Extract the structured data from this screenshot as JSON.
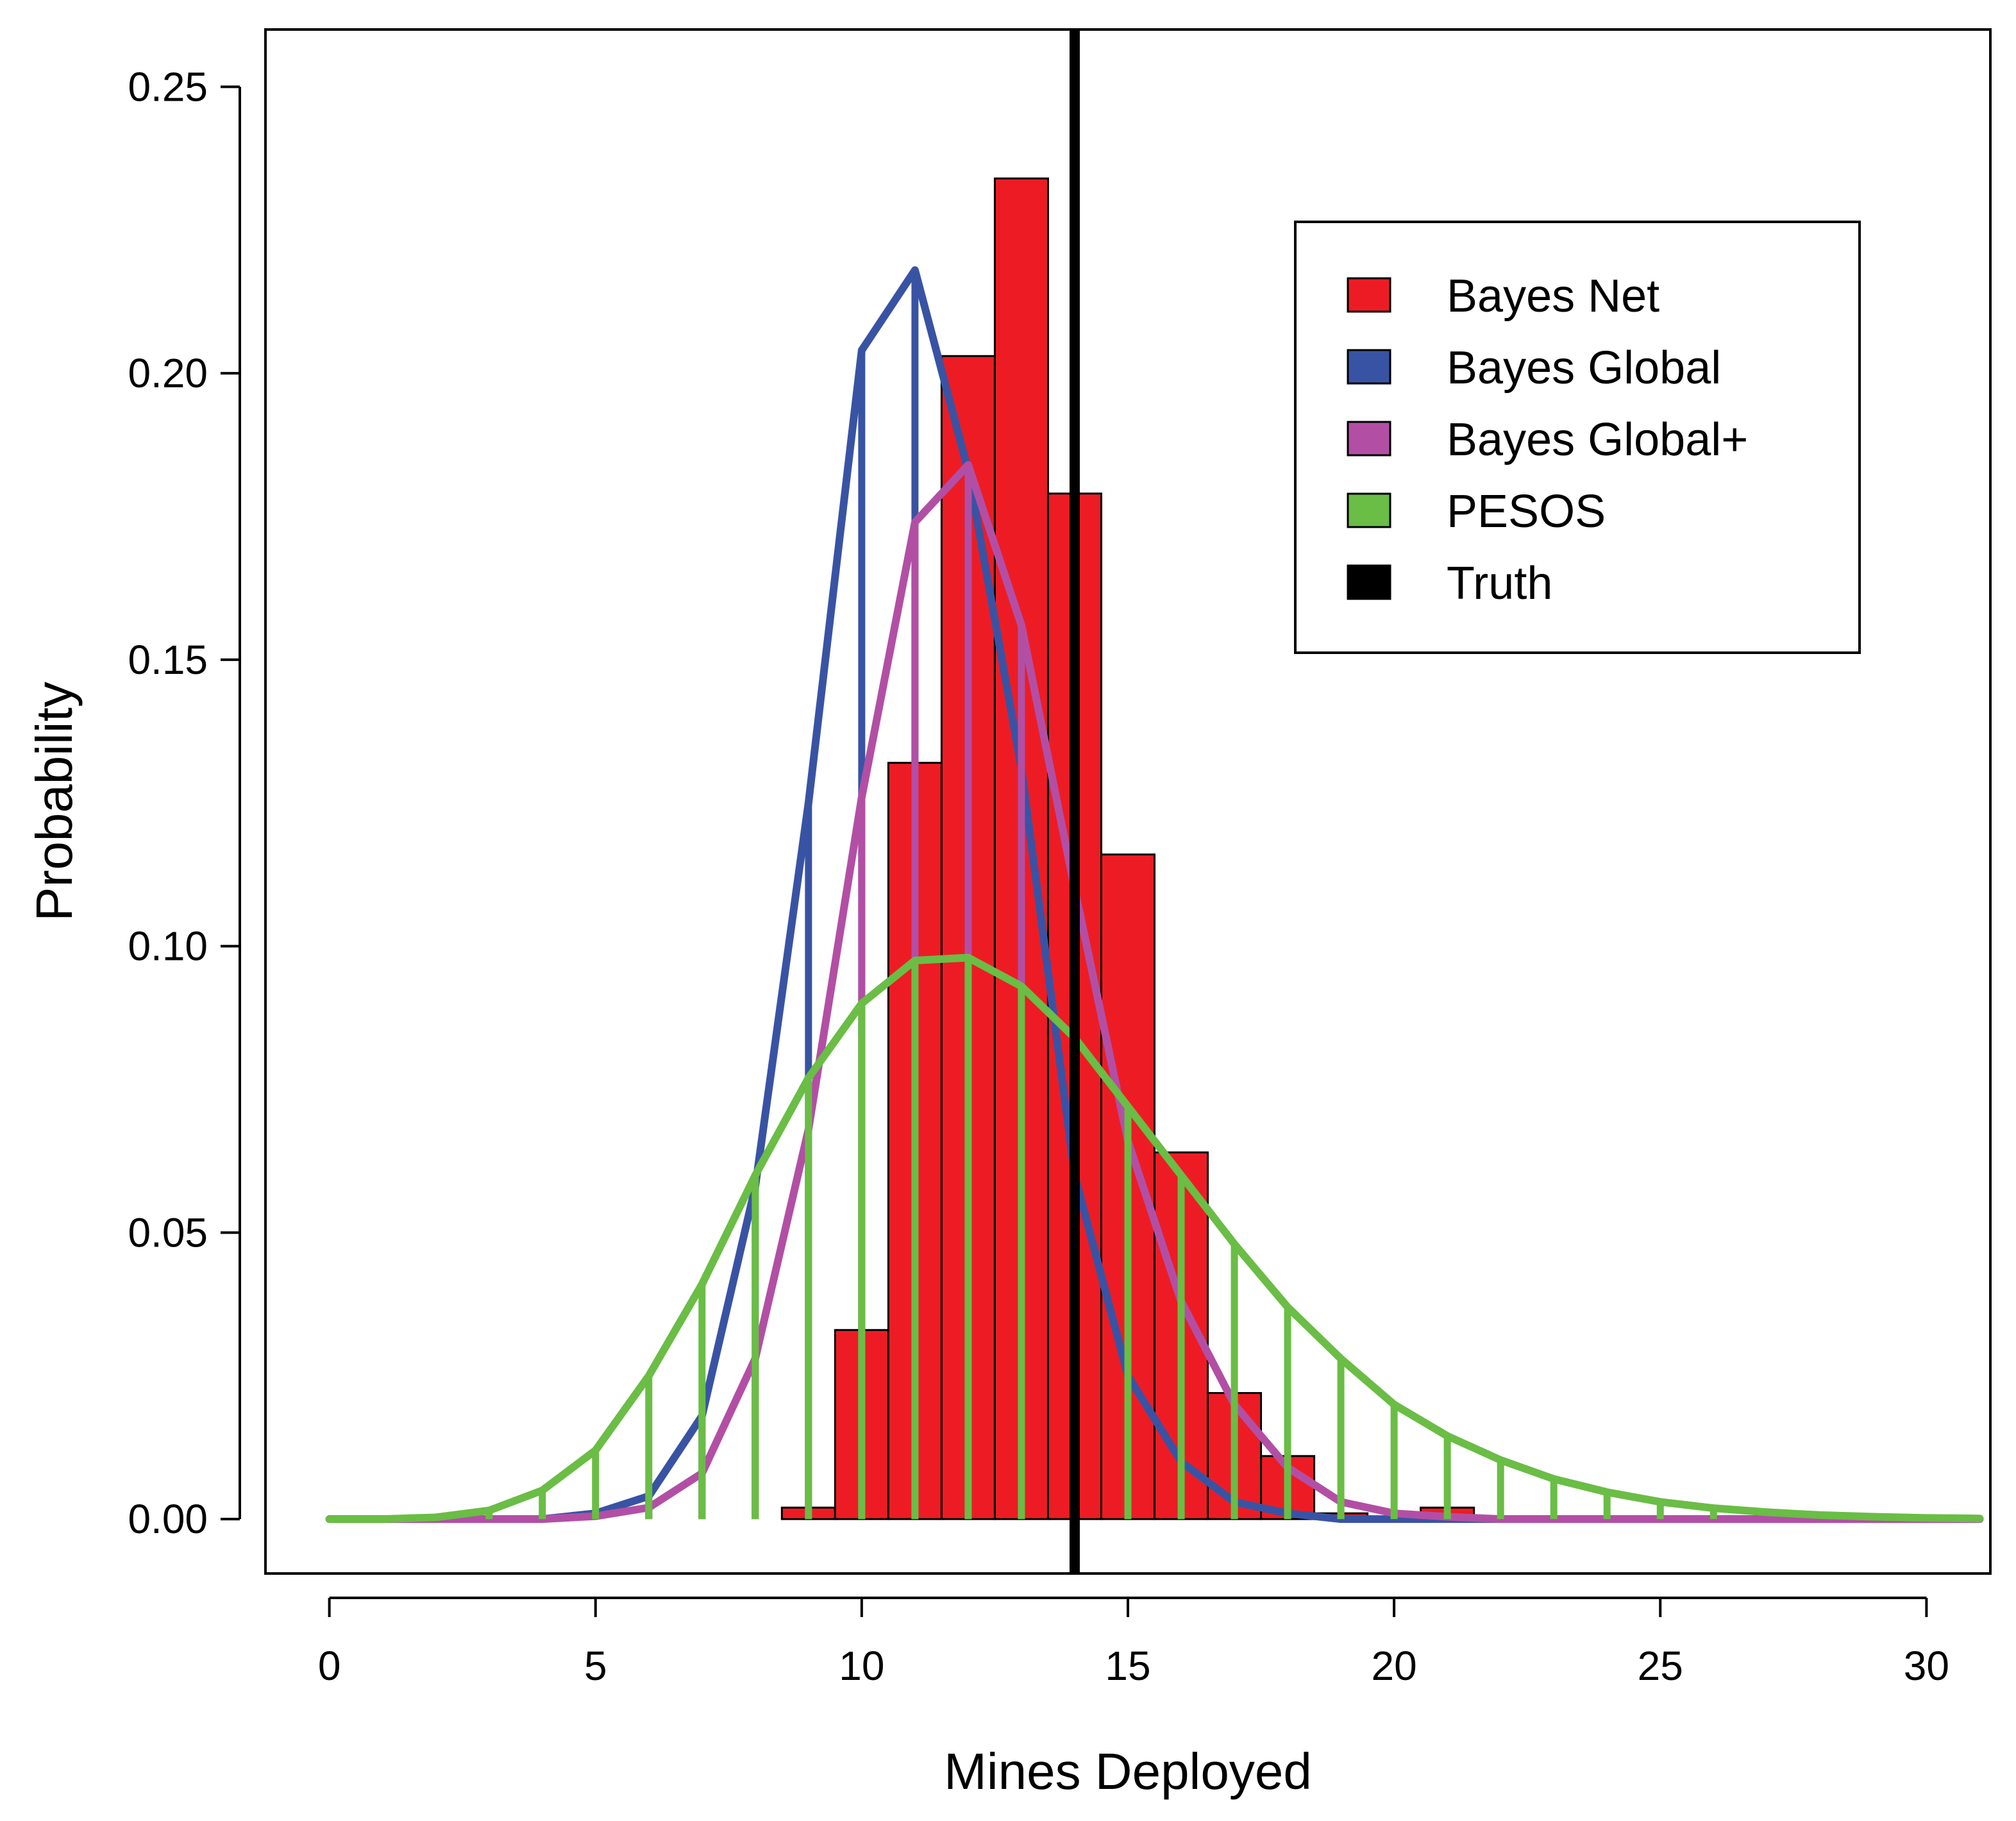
{
  "chart_data": {
    "type": "bar",
    "title": "",
    "xlabel": "Mines Deployed",
    "ylabel": "Probability",
    "xlim": [
      -1.2,
      31.2
    ],
    "ylim": [
      -0.0095,
      0.26
    ],
    "grid": false,
    "legend_position": "top-right",
    "xticks": [
      0,
      5,
      10,
      15,
      20,
      25,
      30
    ],
    "xtick_labels": [
      "0",
      "5",
      "10",
      "15",
      "20",
      "25",
      "30"
    ],
    "yticks": [
      0.0,
      0.05,
      0.1,
      0.15,
      0.2,
      0.25
    ],
    "ytick_labels": [
      "0.00",
      "0.05",
      "0.10",
      "0.15",
      "0.20",
      "0.25"
    ],
    "truth": {
      "name": "Truth",
      "value": 14,
      "color": "#000000"
    },
    "histogram": {
      "name": "Bayes Net",
      "color": "#ed1c24",
      "bin_edges": [
        8.5,
        9.5,
        10.5,
        11.5,
        12.5,
        13.5,
        14.5,
        15.5,
        16.5,
        17.5,
        18.5,
        19.5,
        20.5,
        21.5
      ],
      "values": [
        0.002,
        0.033,
        0.132,
        0.203,
        0.234,
        0.179,
        0.116,
        0.064,
        0.022,
        0.011,
        0.001,
        0.0,
        0.002
      ]
    },
    "series": [
      {
        "name": "Bayes Global",
        "color": "#3953a4",
        "x": [
          0,
          1,
          2,
          3,
          4,
          5,
          6,
          7,
          8,
          9,
          10,
          11,
          12,
          13,
          14,
          15,
          16,
          17,
          18,
          19,
          20,
          21,
          22,
          23,
          24,
          25,
          26,
          27,
          28,
          29,
          30,
          31
        ],
        "values": [
          0,
          0,
          0,
          0,
          0,
          0.001,
          0.004,
          0.018,
          0.058,
          0.125,
          0.204,
          0.218,
          0.183,
          0.131,
          0.06,
          0.025,
          0.01,
          0.003,
          0.001,
          0,
          0,
          0,
          0,
          0,
          0,
          0,
          0,
          0,
          0,
          0,
          0,
          0
        ]
      },
      {
        "name": "Bayes Global+",
        "color": "#b24fa5",
        "x": [
          0,
          1,
          2,
          3,
          4,
          5,
          6,
          7,
          8,
          9,
          10,
          11,
          12,
          13,
          14,
          15,
          16,
          17,
          18,
          19,
          20,
          21,
          22,
          23,
          24,
          25,
          26,
          27,
          28,
          29,
          30,
          31
        ],
        "values": [
          0,
          0,
          0,
          0,
          0,
          0.0005,
          0.002,
          0.008,
          0.028,
          0.068,
          0.126,
          0.174,
          0.184,
          0.156,
          0.11,
          0.066,
          0.038,
          0.02,
          0.009,
          0.003,
          0.001,
          0.0004,
          0,
          0,
          0,
          0,
          0,
          0,
          0,
          0,
          0,
          0
        ]
      },
      {
        "name": "PESOS",
        "color": "#6abd45",
        "x": [
          0,
          1,
          2,
          3,
          4,
          5,
          6,
          7,
          8,
          9,
          10,
          11,
          12,
          13,
          14,
          15,
          16,
          17,
          18,
          19,
          20,
          21,
          22,
          23,
          24,
          25,
          26,
          27,
          28,
          29,
          30,
          31
        ],
        "values": [
          0.0,
          0.0,
          0.0003,
          0.0015,
          0.005,
          0.012,
          0.025,
          0.041,
          0.06,
          0.077,
          0.09,
          0.0975,
          0.098,
          0.093,
          0.084,
          0.072,
          0.06,
          0.048,
          0.037,
          0.028,
          0.02,
          0.0145,
          0.0103,
          0.007,
          0.0047,
          0.003,
          0.0019,
          0.0012,
          0.0007,
          0.0004,
          0.0002,
          0.0001
        ]
      }
    ],
    "legend": [
      {
        "label": "Bayes Net",
        "color": "#ed1c24"
      },
      {
        "label": "Bayes Global",
        "color": "#3953a4"
      },
      {
        "label": "Bayes Global+",
        "color": "#b24fa5"
      },
      {
        "label": "PESOS",
        "color": "#6abd45"
      },
      {
        "label": "Truth",
        "color": "#000000"
      }
    ]
  }
}
